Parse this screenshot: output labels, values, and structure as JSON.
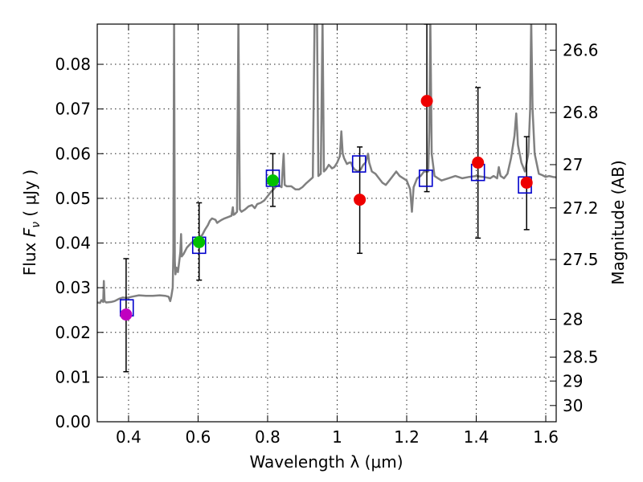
{
  "chart_data": {
    "type": "scatter",
    "xlabel": "Wavelength  λ (μm)",
    "ylabel_prefix": "Flux  ",
    "ylabel_symbol": "F",
    "ylabel_subscript": "ν",
    "ylabel_suffix": "  ( μJy )",
    "y2label": "Magnitude (AB)",
    "xlim": [
      0.31,
      1.63
    ],
    "ylim": [
      0.0,
      0.089
    ],
    "x_ticks": [
      0.4,
      0.6,
      0.8,
      1.0,
      1.2,
      1.4,
      1.6
    ],
    "x_tick_labels": [
      "0.4",
      "0.6",
      "0.8",
      "1",
      "1.2",
      "1.4",
      "1.6"
    ],
    "y_ticks": [
      0.0,
      0.01,
      0.02,
      0.03,
      0.04,
      0.05,
      0.06,
      0.07,
      0.08
    ],
    "y_tick_labels": [
      "0.00",
      "0.01",
      "0.02",
      "0.03",
      "0.04",
      "0.05",
      "0.06",
      "0.07",
      "0.08"
    ],
    "mag_ticks": [
      26.6,
      26.8,
      27,
      27.2,
      27.5,
      28,
      28.5,
      29,
      30
    ],
    "mag_tick_labels": [
      "26.6",
      "26.8",
      "27",
      "27.2",
      "27.5",
      "28",
      "28.5",
      "29",
      "30"
    ],
    "grid": true,
    "colors": {
      "spectrum": "#808080",
      "model_box": "#0000cc",
      "magenta": "#c000c0",
      "green": "#00c000",
      "red": "#ee0000",
      "errorbar": "#000000"
    },
    "spectrum": [
      [
        0.31,
        0.0267
      ],
      [
        0.318,
        0.0266
      ],
      [
        0.322,
        0.0272
      ],
      [
        0.327,
        0.0268
      ],
      [
        0.329,
        0.0315
      ],
      [
        0.331,
        0.027
      ],
      [
        0.336,
        0.0267
      ],
      [
        0.35,
        0.0268
      ],
      [
        0.36,
        0.027
      ],
      [
        0.372,
        0.0275
      ],
      [
        0.383,
        0.0278
      ],
      [
        0.395,
        0.0277
      ],
      [
        0.41,
        0.028
      ],
      [
        0.43,
        0.0283
      ],
      [
        0.45,
        0.0282
      ],
      [
        0.47,
        0.0282
      ],
      [
        0.49,
        0.0283
      ],
      [
        0.505,
        0.0282
      ],
      [
        0.515,
        0.028
      ],
      [
        0.52,
        0.027
      ],
      [
        0.523,
        0.028
      ],
      [
        0.527,
        0.03
      ],
      [
        0.529,
        0.038
      ],
      [
        0.531,
        0.09
      ],
      [
        0.533,
        0.036
      ],
      [
        0.535,
        0.033
      ],
      [
        0.538,
        0.0345
      ],
      [
        0.542,
        0.0335
      ],
      [
        0.546,
        0.036
      ],
      [
        0.549,
        0.038
      ],
      [
        0.551,
        0.042
      ],
      [
        0.553,
        0.037
      ],
      [
        0.558,
        0.0375
      ],
      [
        0.568,
        0.039
      ],
      [
        0.58,
        0.04
      ],
      [
        0.59,
        0.0405
      ],
      [
        0.6,
        0.041
      ],
      [
        0.612,
        0.0418
      ],
      [
        0.62,
        0.043
      ],
      [
        0.628,
        0.044
      ],
      [
        0.634,
        0.045
      ],
      [
        0.64,
        0.0455
      ],
      [
        0.65,
        0.0452
      ],
      [
        0.655,
        0.0445
      ],
      [
        0.66,
        0.0448
      ],
      [
        0.668,
        0.0452
      ],
      [
        0.676,
        0.0455
      ],
      [
        0.686,
        0.0458
      ],
      [
        0.696,
        0.0461
      ],
      [
        0.7,
        0.048
      ],
      [
        0.702,
        0.0463
      ],
      [
        0.706,
        0.0465
      ],
      [
        0.712,
        0.047
      ],
      [
        0.716,
        0.09
      ],
      [
        0.72,
        0.0475
      ],
      [
        0.725,
        0.047
      ],
      [
        0.735,
        0.0475
      ],
      [
        0.745,
        0.0482
      ],
      [
        0.755,
        0.0485
      ],
      [
        0.763,
        0.0478
      ],
      [
        0.77,
        0.0487
      ],
      [
        0.78,
        0.049
      ],
      [
        0.79,
        0.0495
      ],
      [
        0.8,
        0.0505
      ],
      [
        0.81,
        0.0515
      ],
      [
        0.817,
        0.052
      ],
      [
        0.822,
        0.0525
      ],
      [
        0.83,
        0.053
      ],
      [
        0.84,
        0.0525
      ],
      [
        0.846,
        0.06
      ],
      [
        0.849,
        0.053
      ],
      [
        0.855,
        0.0527
      ],
      [
        0.868,
        0.0527
      ],
      [
        0.88,
        0.052
      ],
      [
        0.89,
        0.052
      ],
      [
        0.9,
        0.0525
      ],
      [
        0.91,
        0.0533
      ],
      [
        0.92,
        0.054
      ],
      [
        0.93,
        0.0547
      ],
      [
        0.935,
        0.09
      ],
      [
        0.942,
        0.09
      ],
      [
        0.946,
        0.055
      ],
      [
        0.953,
        0.0555
      ],
      [
        0.958,
        0.09
      ],
      [
        0.962,
        0.056
      ],
      [
        0.968,
        0.0565
      ],
      [
        0.972,
        0.057
      ],
      [
        0.976,
        0.0575
      ],
      [
        0.98,
        0.0572
      ],
      [
        0.985,
        0.0567
      ],
      [
        0.992,
        0.057
      ],
      [
        1.0,
        0.058
      ],
      [
        1.008,
        0.0595
      ],
      [
        1.012,
        0.065
      ],
      [
        1.016,
        0.06
      ],
      [
        1.02,
        0.059
      ],
      [
        1.028,
        0.0577
      ],
      [
        1.035,
        0.058
      ],
      [
        1.04,
        0.058
      ],
      [
        1.045,
        0.057
      ],
      [
        1.05,
        0.0565
      ],
      [
        1.06,
        0.056
      ],
      [
        1.068,
        0.0565
      ],
      [
        1.075,
        0.0575
      ],
      [
        1.082,
        0.058
      ],
      [
        1.089,
        0.06
      ],
      [
        1.092,
        0.058
      ],
      [
        1.1,
        0.056
      ],
      [
        1.11,
        0.0555
      ],
      [
        1.12,
        0.0545
      ],
      [
        1.13,
        0.0535
      ],
      [
        1.14,
        0.053
      ],
      [
        1.15,
        0.054
      ],
      [
        1.16,
        0.055
      ],
      [
        1.17,
        0.056
      ],
      [
        1.18,
        0.055
      ],
      [
        1.19,
        0.0545
      ],
      [
        1.2,
        0.054
      ],
      [
        1.21,
        0.052
      ],
      [
        1.215,
        0.047
      ],
      [
        1.22,
        0.0525
      ],
      [
        1.23,
        0.0545
      ],
      [
        1.24,
        0.055
      ],
      [
        1.25,
        0.056
      ],
      [
        1.262,
        0.056
      ],
      [
        1.265,
        0.065
      ],
      [
        1.268,
        0.09
      ],
      [
        1.272,
        0.06
      ],
      [
        1.28,
        0.055
      ],
      [
        1.29,
        0.0545
      ],
      [
        1.3,
        0.054
      ],
      [
        1.32,
        0.0545
      ],
      [
        1.34,
        0.055
      ],
      [
        1.36,
        0.0545
      ],
      [
        1.38,
        0.0548
      ],
      [
        1.4,
        0.055
      ],
      [
        1.42,
        0.0548
      ],
      [
        1.44,
        0.0545
      ],
      [
        1.45,
        0.055
      ],
      [
        1.46,
        0.0545
      ],
      [
        1.465,
        0.057
      ],
      [
        1.47,
        0.055
      ],
      [
        1.48,
        0.0545
      ],
      [
        1.49,
        0.0555
      ],
      [
        1.5,
        0.059
      ],
      [
        1.51,
        0.064
      ],
      [
        1.515,
        0.069
      ],
      [
        1.52,
        0.062
      ],
      [
        1.53,
        0.058
      ],
      [
        1.54,
        0.056
      ],
      [
        1.55,
        0.06
      ],
      [
        1.555,
        0.07
      ],
      [
        1.558,
        0.09
      ],
      [
        1.562,
        0.07
      ],
      [
        1.568,
        0.06
      ],
      [
        1.58,
        0.0555
      ],
      [
        1.59,
        0.0552
      ],
      [
        1.6,
        0.0548
      ],
      [
        1.61,
        0.055
      ],
      [
        1.62,
        0.0548
      ],
      [
        1.63,
        0.0547
      ]
    ],
    "model_boxes": [
      [
        0.395,
        0.0255
      ],
      [
        0.603,
        0.0395
      ],
      [
        0.815,
        0.0545
      ],
      [
        1.063,
        0.0577
      ],
      [
        1.255,
        0.0545
      ],
      [
        1.405,
        0.0558
      ],
      [
        1.54,
        0.053
      ]
    ],
    "observations": [
      {
        "x": 0.393,
        "y": 0.024,
        "yerr_low": 0.0112,
        "yerr_high": 0.0365,
        "color": "magenta"
      },
      {
        "x": 0.603,
        "y": 0.0402,
        "yerr_low": 0.0317,
        "yerr_high": 0.049,
        "color": "green"
      },
      {
        "x": 0.815,
        "y": 0.054,
        "yerr_low": 0.0482,
        "yerr_high": 0.06,
        "color": "green"
      },
      {
        "x": 1.065,
        "y": 0.0497,
        "yerr_low": 0.0377,
        "yerr_high": 0.0615,
        "color": "red"
      },
      {
        "x": 1.258,
        "y": 0.0718,
        "yerr_low": 0.0515,
        "yerr_high": 0.089,
        "color": "red"
      },
      {
        "x": 1.405,
        "y": 0.058,
        "yerr_low": 0.0411,
        "yerr_high": 0.0748,
        "color": "red"
      },
      {
        "x": 1.545,
        "y": 0.0535,
        "yerr_low": 0.043,
        "yerr_high": 0.0638,
        "color": "red"
      }
    ]
  }
}
